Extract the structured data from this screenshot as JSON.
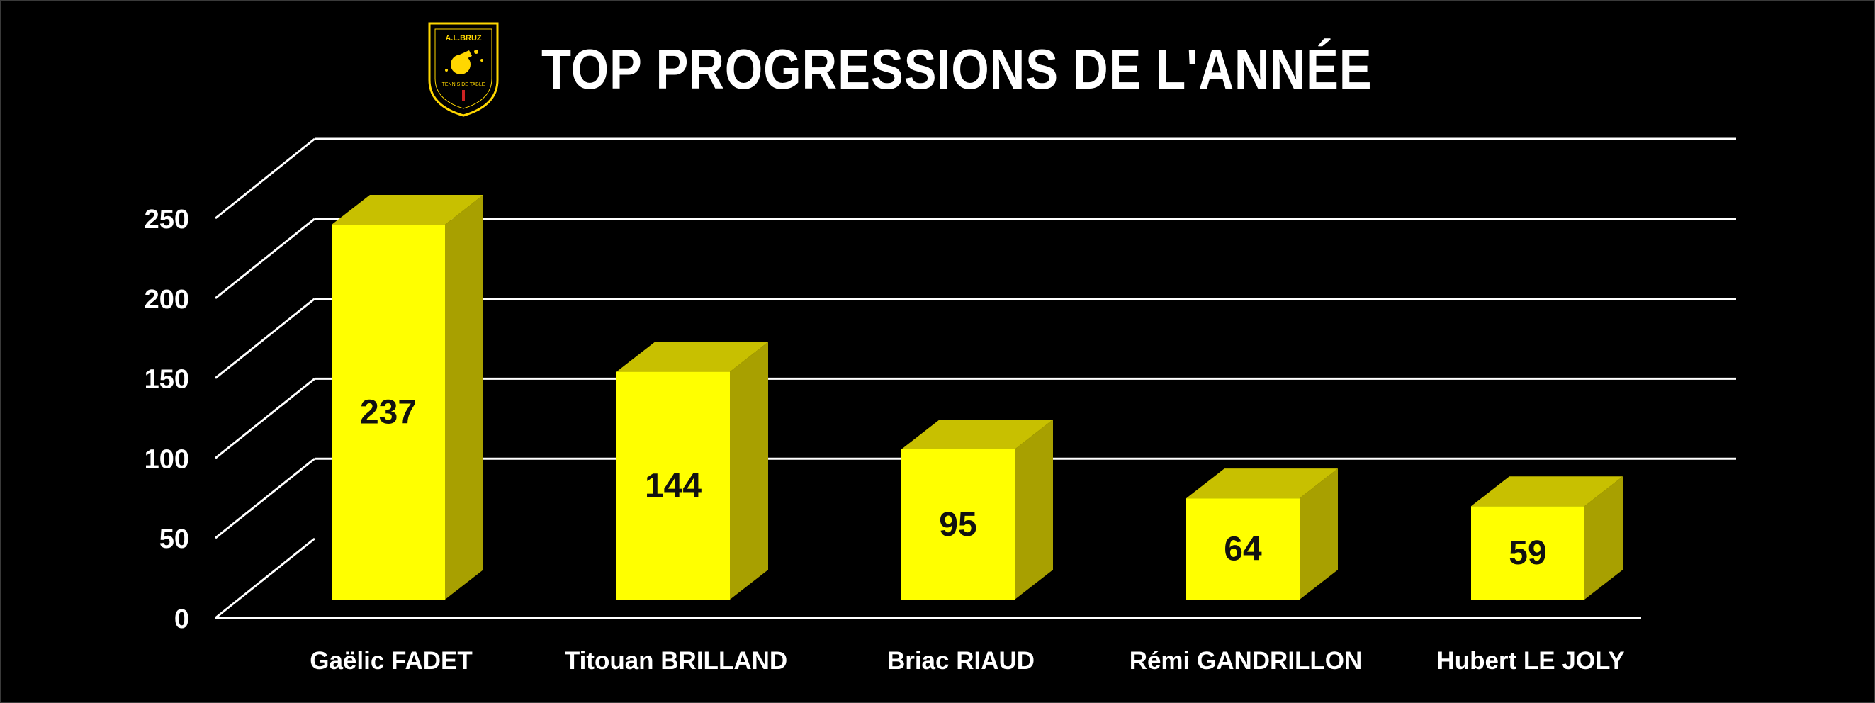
{
  "header": {
    "title": "TOP PROGRESSIONS DE L'ANNÉE",
    "logo": {
      "icon": "table-tennis-club-shield-logo",
      "club_name": "A.L.BRUZ",
      "subtitle": "TENNIS DE TABLE",
      "colors": {
        "shield": "#000000",
        "accent": "#ffd700"
      }
    }
  },
  "colors": {
    "background": "#000000",
    "bar_front": "#ffff00",
    "bar_top": "#c8c000",
    "bar_side": "#a8a000",
    "grid": "#ffffff",
    "text": "#ffffff",
    "value_label": "#111111"
  },
  "chart_data": {
    "type": "bar",
    "style": "3d-column",
    "categories": [
      "Gaëlic FADET",
      "Titouan BRILLAND",
      "Briac RIAUD",
      "Rémi GANDRILLON",
      "Hubert LE JOLY"
    ],
    "values": [
      237,
      144,
      95,
      64,
      59
    ],
    "data_labels": [
      "237",
      "144",
      "95",
      "64",
      "59"
    ],
    "yticks": [
      "0",
      "50",
      "100",
      "150",
      "200",
      "250"
    ],
    "ylim": [
      0,
      250
    ],
    "grid": true,
    "legend": "none"
  }
}
